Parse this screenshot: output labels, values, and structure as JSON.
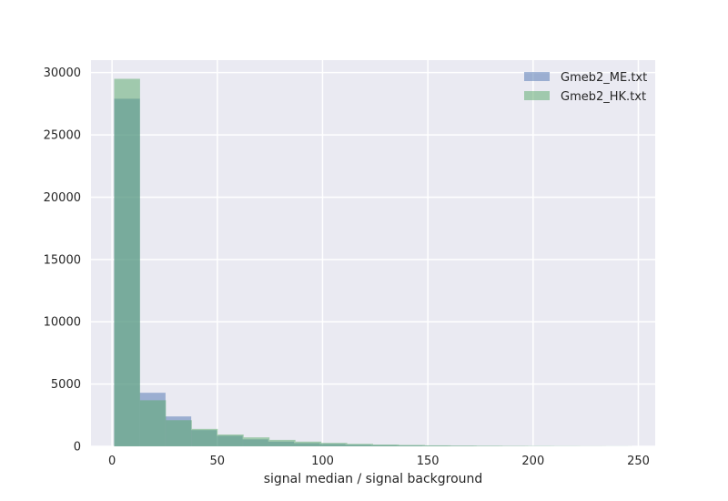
{
  "chart_data": {
    "type": "bar",
    "xlabel": "signal median / signal background",
    "ylabel": "",
    "xlim": [
      -10,
      258
    ],
    "ylim": [
      0,
      31000
    ],
    "x_ticks": [
      0,
      50,
      100,
      150,
      200,
      250
    ],
    "y_ticks": [
      0,
      5000,
      10000,
      15000,
      20000,
      25000,
      30000
    ],
    "grid": true,
    "legend_position": "top-right",
    "series": [
      {
        "name": "Gmeb2_ME.txt",
        "color": "#4c72b0",
        "opacity": 0.5,
        "bins": [
          {
            "x0": 1,
            "x1": 13.2,
            "count": 27900
          },
          {
            "x0": 13.2,
            "x1": 25.4,
            "count": 4300
          },
          {
            "x0": 25.4,
            "x1": 37.6,
            "count": 2400
          },
          {
            "x0": 37.6,
            "x1": 49.8,
            "count": 1300
          },
          {
            "x0": 49.8,
            "x1": 62.0,
            "count": 850
          },
          {
            "x0": 62.0,
            "x1": 74.2,
            "count": 560
          },
          {
            "x0": 74.2,
            "x1": 86.4,
            "count": 380
          },
          {
            "x0": 86.4,
            "x1": 98.6,
            "count": 260
          },
          {
            "x0": 98.6,
            "x1": 110.8,
            "count": 190
          },
          {
            "x0": 110.8,
            "x1": 123.0,
            "count": 130
          },
          {
            "x0": 123.0,
            "x1": 135.2,
            "count": 90
          },
          {
            "x0": 135.2,
            "x1": 147.4,
            "count": 65
          },
          {
            "x0": 147.4,
            "x1": 159.6,
            "count": 45
          },
          {
            "x0": 159.6,
            "x1": 171.8,
            "count": 35
          },
          {
            "x0": 171.8,
            "x1": 184.0,
            "count": 25
          },
          {
            "x0": 184.0,
            "x1": 196.2,
            "count": 18
          },
          {
            "x0": 196.2,
            "x1": 208.4,
            "count": 12
          },
          {
            "x0": 208.4,
            "x1": 220.6,
            "count": 8
          },
          {
            "x0": 220.6,
            "x1": 232.8,
            "count": 6
          },
          {
            "x0": 232.8,
            "x1": 245.0,
            "count": 4
          }
        ]
      },
      {
        "name": "Gmeb2_HK.txt",
        "color": "#55a868",
        "opacity": 0.5,
        "bins": [
          {
            "x0": 1,
            "x1": 13.3,
            "count": 29500
          },
          {
            "x0": 13.3,
            "x1": 25.6,
            "count": 3700
          },
          {
            "x0": 25.6,
            "x1": 37.9,
            "count": 2100
          },
          {
            "x0": 37.9,
            "x1": 50.2,
            "count": 1400
          },
          {
            "x0": 50.2,
            "x1": 62.5,
            "count": 950
          },
          {
            "x0": 62.5,
            "x1": 74.8,
            "count": 720
          },
          {
            "x0": 74.8,
            "x1": 87.1,
            "count": 520
          },
          {
            "x0": 87.1,
            "x1": 99.4,
            "count": 380
          },
          {
            "x0": 99.4,
            "x1": 111.7,
            "count": 280
          },
          {
            "x0": 111.7,
            "x1": 124.0,
            "count": 200
          },
          {
            "x0": 124.0,
            "x1": 136.3,
            "count": 145
          },
          {
            "x0": 136.3,
            "x1": 148.6,
            "count": 110
          },
          {
            "x0": 148.6,
            "x1": 160.9,
            "count": 80
          },
          {
            "x0": 160.9,
            "x1": 173.2,
            "count": 60
          },
          {
            "x0": 173.2,
            "x1": 185.5,
            "count": 45
          },
          {
            "x0": 185.5,
            "x1": 197.8,
            "count": 32
          },
          {
            "x0": 197.8,
            "x1": 210.1,
            "count": 24
          },
          {
            "x0": 210.1,
            "x1": 222.4,
            "count": 16
          },
          {
            "x0": 222.4,
            "x1": 234.7,
            "count": 10
          },
          {
            "x0": 234.7,
            "x1": 247.0,
            "count": 6
          }
        ]
      }
    ]
  }
}
